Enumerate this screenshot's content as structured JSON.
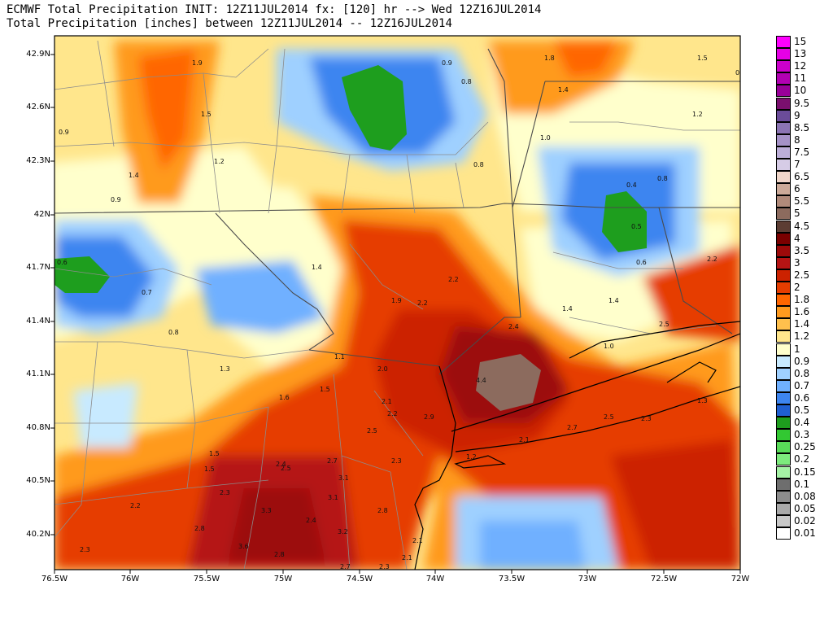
{
  "header": {
    "line1": "ECMWF Total Precipitation INIT: 12Z11JUL2014 fx: [120] hr --> Wed 12Z16JUL2014",
    "line2": "Total Precipitation [inches] between 12Z11JUL2014 -- 12Z16JUL2014"
  },
  "axes": {
    "lat_labels": [
      "42.9N",
      "42.6N",
      "42.3N",
      "42N",
      "41.7N",
      "41.4N",
      "41.1N",
      "40.8N",
      "40.5N",
      "40.2N"
    ],
    "lon_labels": [
      "76.5W",
      "76W",
      "75.5W",
      "75W",
      "74.5W",
      "74W",
      "73.5W",
      "73W",
      "72.5W",
      "72W"
    ]
  },
  "legend": {
    "items": [
      {
        "label": "15",
        "color": "#ff00ff"
      },
      {
        "label": "13",
        "color": "#e600e6"
      },
      {
        "label": "12",
        "color": "#cc00cc"
      },
      {
        "label": "11",
        "color": "#b300b3"
      },
      {
        "label": "10",
        "color": "#990099"
      },
      {
        "label": "9.5",
        "color": "#7a0f6e"
      },
      {
        "label": "9",
        "color": "#6b4c9a"
      },
      {
        "label": "8.5",
        "color": "#8b74b3"
      },
      {
        "label": "8",
        "color": "#a592c7"
      },
      {
        "label": "7.5",
        "color": "#bcaed8"
      },
      {
        "label": "7",
        "color": "#d6cce6"
      },
      {
        "label": "6.5",
        "color": "#f0d6c9"
      },
      {
        "label": "6",
        "color": "#ccaa99"
      },
      {
        "label": "5.5",
        "color": "#b08a7a"
      },
      {
        "label": "5",
        "color": "#8c6b5e"
      },
      {
        "label": "4.5",
        "color": "#5c3d33"
      },
      {
        "label": "4",
        "color": "#7a0000"
      },
      {
        "label": "3.5",
        "color": "#9c0a0a"
      },
      {
        "label": "3",
        "color": "#b51414"
      },
      {
        "label": "2.5",
        "color": "#cc2200"
      },
      {
        "label": "2",
        "color": "#e63d00"
      },
      {
        "label": "1.8",
        "color": "#ff6600"
      },
      {
        "label": "1.6",
        "color": "#ff9a1e"
      },
      {
        "label": "1.4",
        "color": "#ffc04d"
      },
      {
        "label": "1.2",
        "color": "#ffe68c"
      },
      {
        "label": "1",
        "color": "#ffffcc"
      },
      {
        "label": "0.9",
        "color": "#c8eaff"
      },
      {
        "label": "0.8",
        "color": "#9fd0ff"
      },
      {
        "label": "0.7",
        "color": "#6fb0ff"
      },
      {
        "label": "0.6",
        "color": "#3d85f0"
      },
      {
        "label": "0.5",
        "color": "#1f5fd1"
      },
      {
        "label": "0.4",
        "color": "#1e9e1e"
      },
      {
        "label": "0.3",
        "color": "#32c832"
      },
      {
        "label": "0.25",
        "color": "#58dc58"
      },
      {
        "label": "0.2",
        "color": "#7deb7d"
      },
      {
        "label": "0.15",
        "color": "#a5f2a5"
      },
      {
        "label": "0.1",
        "color": "#6e6e6e"
      },
      {
        "label": "0.08",
        "color": "#8c8c8c"
      },
      {
        "label": "0.05",
        "color": "#a9a9a9"
      },
      {
        "label": "0.02",
        "color": "#c8c8c8"
      },
      {
        "label": "0.01",
        "color": "#ffffff"
      }
    ]
  },
  "contour_values": [
    {
      "text": "1.9"
    },
    {
      "text": "1.5"
    },
    {
      "text": "1.4"
    },
    {
      "text": "1.2"
    },
    {
      "text": "0.9"
    },
    {
      "text": "0.9"
    },
    {
      "text": "0.9"
    },
    {
      "text": "0.8"
    },
    {
      "text": "0.8"
    },
    {
      "text": "1.8"
    },
    {
      "text": "1.5"
    },
    {
      "text": "0.9"
    },
    {
      "text": "1.4"
    },
    {
      "text": "1.2"
    },
    {
      "text": "1.0"
    },
    {
      "text": "0.4"
    },
    {
      "text": "0.8"
    },
    {
      "text": "0.5"
    },
    {
      "text": "0.6"
    },
    {
      "text": "0.6"
    },
    {
      "text": "0.7"
    },
    {
      "text": "0.8"
    },
    {
      "text": "1.4"
    },
    {
      "text": "1.9"
    },
    {
      "text": "2.2"
    },
    {
      "text": "2.2"
    },
    {
      "text": "1.1"
    },
    {
      "text": "1.3"
    },
    {
      "text": "1.6"
    },
    {
      "text": "1.5"
    },
    {
      "text": "2.0"
    },
    {
      "text": "2.4"
    },
    {
      "text": "1.4"
    },
    {
      "text": "1.4"
    },
    {
      "text": "2.5"
    },
    {
      "text": "2.2"
    },
    {
      "text": "1.0"
    },
    {
      "text": "4.4"
    },
    {
      "text": "2.1"
    },
    {
      "text": "2.2"
    },
    {
      "text": "2.9"
    },
    {
      "text": "2.5"
    },
    {
      "text": "2.7"
    },
    {
      "text": "2.5"
    },
    {
      "text": "2.3"
    },
    {
      "text": "1.3"
    },
    {
      "text": "2.1"
    },
    {
      "text": "1.2"
    },
    {
      "text": "2.4"
    },
    {
      "text": "2.7"
    },
    {
      "text": "2.5"
    },
    {
      "text": "3.1"
    },
    {
      "text": "3.1"
    },
    {
      "text": "2.3"
    },
    {
      "text": "1.5"
    },
    {
      "text": "1.5"
    },
    {
      "text": "2.2"
    },
    {
      "text": "2.3"
    },
    {
      "text": "3.3"
    },
    {
      "text": "2.4"
    },
    {
      "text": "2.8"
    },
    {
      "text": "3.6"
    },
    {
      "text": "3.2"
    },
    {
      "text": "2.8"
    },
    {
      "text": "2.1"
    },
    {
      "text": "2.1"
    },
    {
      "text": "2.7"
    },
    {
      "text": "2.3"
    },
    {
      "text": "2.8"
    },
    {
      "text": "2.3"
    }
  ]
}
